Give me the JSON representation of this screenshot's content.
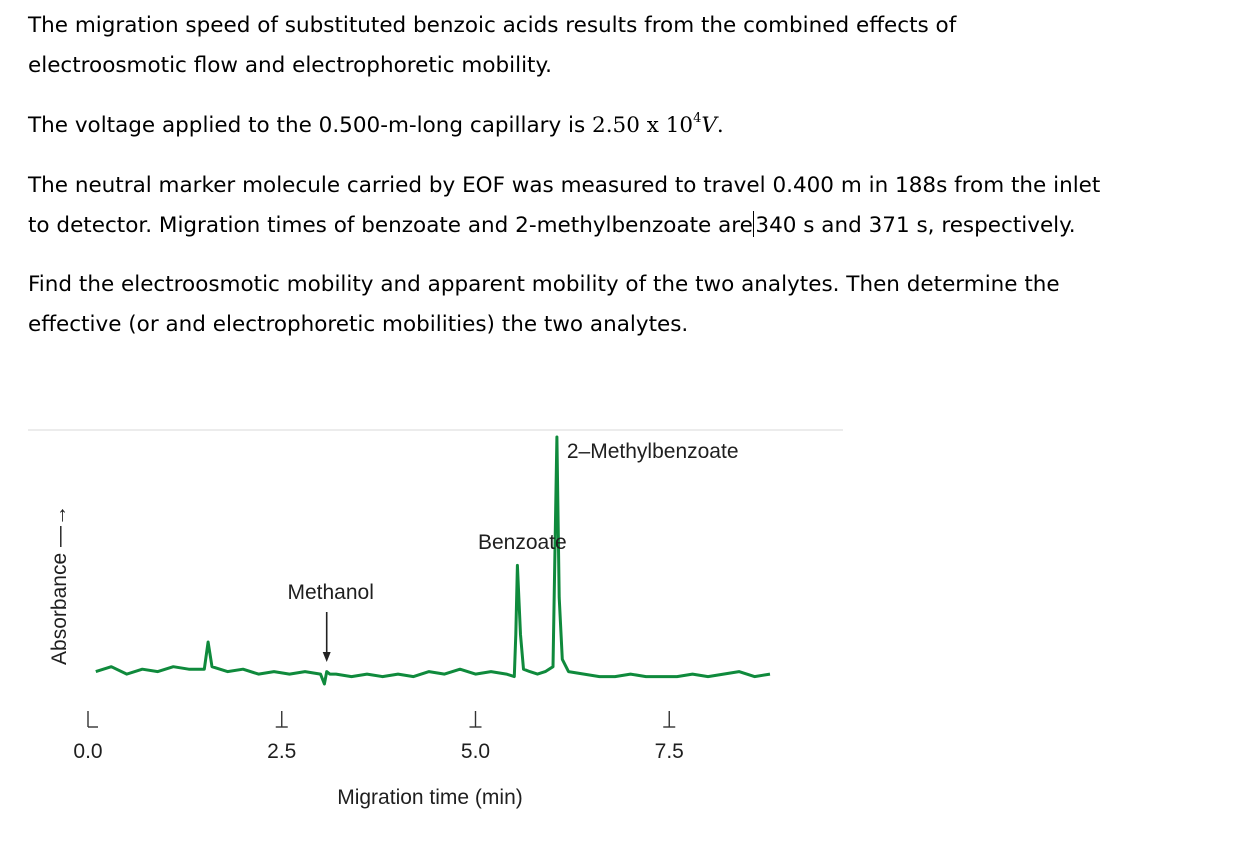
{
  "text": {
    "p1_line1": "The migration speed of substituted benzoic acids results from the combined effects of",
    "p1_line2": "electroosmotic flow and electrophoretic mobility.",
    "p2_pre": "The voltage applied to the 0.500-m-long capillary is ",
    "p2_math_base": "2.50 x 10",
    "p2_math_exp": "4",
    "p2_math_unit": "V",
    "p2_post": ".",
    "p3_line1": "The neutral marker molecule carried by EOF was measured to travel 0.400 m in 188s from the inlet",
    "p3_line2_pre": "to detector. Migration times of benzoate and 2-methylbenzoate are",
    "p3_line2_post": "340 s and 371 s, respectively.",
    "p4_line1": "Find the electroosmotic mobility and apparent mobility of the two analytes. Then determine the",
    "p4_line2": "effective (or and electrophoretic mobilities) the two analytes."
  },
  "chart_data": {
    "type": "line",
    "title": "",
    "xlabel": "Migration time (min)",
    "ylabel": "Absorbance —→",
    "xticks": [
      "0.0",
      "2.5",
      "5.0",
      "7.5"
    ],
    "xlim": [
      0,
      8.8
    ],
    "ylim": [
      0,
      1
    ],
    "series": [
      {
        "color": "#0f8a3c",
        "x": [
          0.1,
          0.3,
          0.5,
          0.7,
          0.9,
          1.1,
          1.3,
          1.5,
          1.55,
          1.6,
          1.8,
          2.0,
          2.2,
          2.4,
          2.6,
          2.8,
          3.0,
          3.05,
          3.08,
          3.12,
          3.2,
          3.4,
          3.6,
          3.8,
          4.0,
          4.2,
          4.4,
          4.6,
          4.8,
          5.0,
          5.2,
          5.4,
          5.5,
          5.52,
          5.54,
          5.58,
          5.62,
          5.7,
          5.8,
          5.9,
          6.0,
          6.05,
          6.08,
          6.12,
          6.2,
          6.4,
          6.6,
          6.8,
          7.0,
          7.2,
          7.4,
          7.6,
          7.8,
          8.0,
          8.2,
          8.4,
          8.6,
          8.8
        ],
        "y": [
          0.05,
          0.07,
          0.04,
          0.06,
          0.05,
          0.07,
          0.06,
          0.06,
          0.17,
          0.07,
          0.05,
          0.06,
          0.04,
          0.05,
          0.04,
          0.05,
          0.04,
          0.0,
          0.05,
          0.04,
          0.04,
          0.03,
          0.04,
          0.03,
          0.04,
          0.03,
          0.05,
          0.04,
          0.06,
          0.04,
          0.05,
          0.04,
          0.03,
          0.2,
          0.48,
          0.2,
          0.06,
          0.05,
          0.04,
          0.05,
          0.07,
          1.0,
          0.35,
          0.1,
          0.05,
          0.04,
          0.03,
          0.03,
          0.04,
          0.03,
          0.03,
          0.03,
          0.04,
          0.03,
          0.04,
          0.05,
          0.03,
          0.04
        ]
      }
    ],
    "annotations": {
      "methanol": "Methanol",
      "benzoate": "Benzoate",
      "methylbenzoate": "2–Methylbenzoate"
    },
    "methanol_arrow_x": 3.08,
    "benzoate_x": 5.54,
    "methylbenzoate_x": 6.05
  }
}
